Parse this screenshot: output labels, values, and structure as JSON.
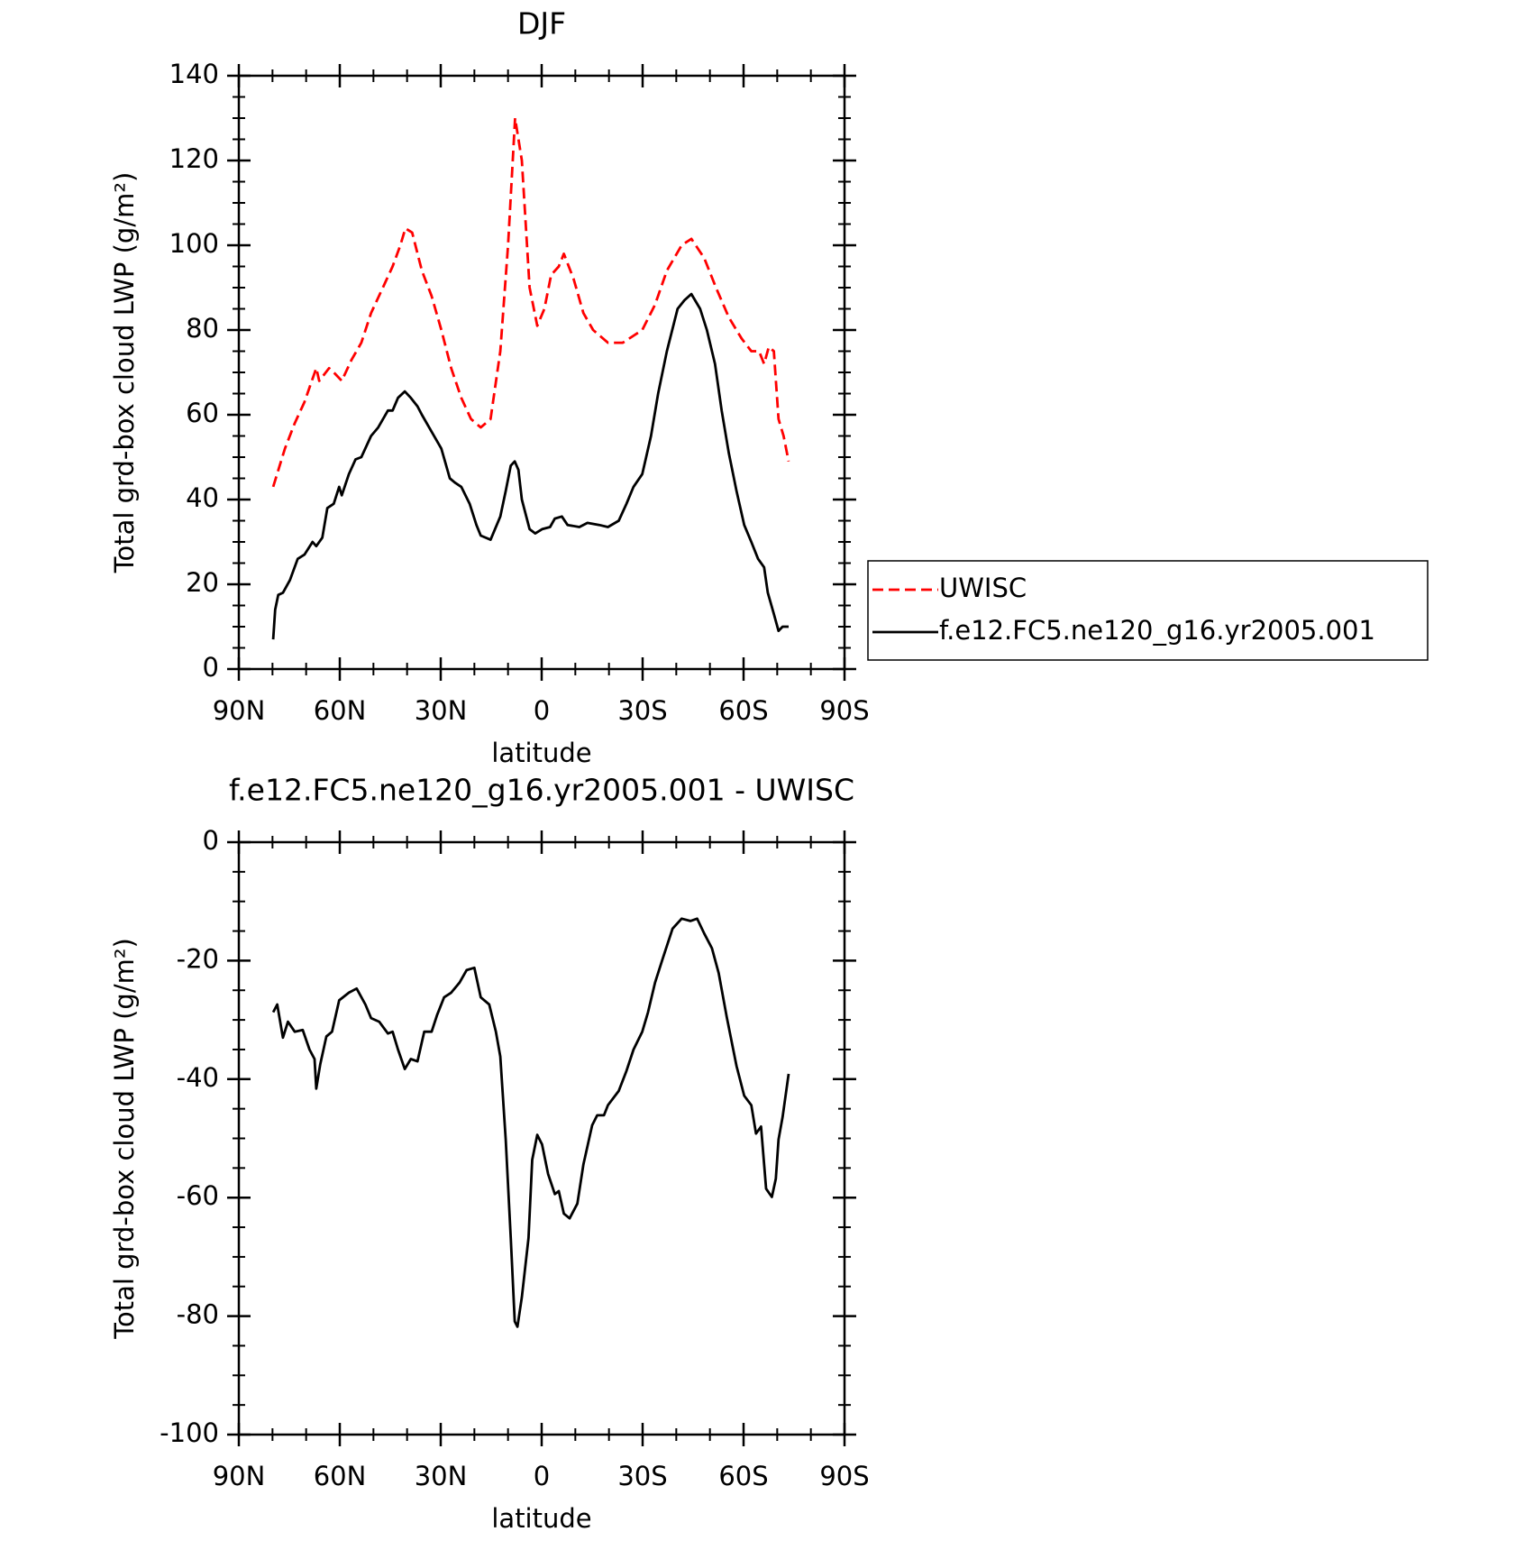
{
  "chart_data": [
    {
      "type": "line",
      "title": "DJF",
      "xlabel": "latitude",
      "ylabel": "Total grd-box cloud LWP (g/m²)",
      "xlim": [
        90,
        -90
      ],
      "xticks": [
        {
          "value": 90,
          "label": "90N"
        },
        {
          "value": 60,
          "label": "60N"
        },
        {
          "value": 30,
          "label": "30N"
        },
        0,
        {
          "value": -30,
          "label": "30S"
        },
        {
          "value": -60,
          "label": "60S"
        },
        {
          "value": -90,
          "label": "90S"
        }
      ],
      "ylim": [
        0,
        140
      ],
      "yticks": [
        0,
        20,
        40,
        60,
        80,
        100,
        120,
        140
      ],
      "legend": "right",
      "series": [
        {
          "name": "UWISC",
          "color": "#ff0000",
          "dash": true,
          "x": [
            79.8,
            76.3,
            73.4,
            70.5,
            67.0,
            66.1,
            63.2,
            61.8,
            59.4,
            56.5,
            53.6,
            50.7,
            47.2,
            44.3,
            42.0,
            40.5,
            38.5,
            35.6,
            32.7,
            29.8,
            26.9,
            23.9,
            21.0,
            18.1,
            15.2,
            12.3,
            10.0,
            7.9,
            5.9,
            3.6,
            1.3,
            -0.8,
            -2.8,
            -5.1,
            -6.6,
            -9.5,
            -12.4,
            -15.3,
            -19.7,
            -24.1,
            -29.9,
            -33.7,
            -37.2,
            -41.6,
            -44.5,
            -48.3,
            -51.8,
            -55.6,
            -59.4,
            -62.3,
            -64.6,
            -66.1,
            -67.5,
            -69.0,
            -70.4,
            -71.9,
            -73.4
          ],
          "values": [
            43,
            52,
            58,
            63,
            71,
            68,
            71,
            70,
            68,
            73,
            77,
            84,
            90,
            95,
            100,
            104,
            103,
            94,
            88,
            80,
            71,
            64,
            59,
            57,
            59,
            75,
            100,
            130,
            120,
            90,
            81,
            85,
            93,
            95,
            98,
            92,
            84,
            80,
            77,
            77,
            80,
            86,
            94,
            100,
            101.5,
            97,
            90,
            83,
            78,
            75,
            75,
            72,
            76,
            75,
            59,
            55,
            49
          ]
        },
        {
          "name": "f.e12.FC5.ne120_g16.yr2005.001",
          "color": "#000000",
          "dash": false,
          "x": [
            79.8,
            79.2,
            78.3,
            76.9,
            74.8,
            72.5,
            70.5,
            68.1,
            67.0,
            65.2,
            63.7,
            61.8,
            60.2,
            59.4,
            57.3,
            55.3,
            53.6,
            50.7,
            48.6,
            45.7,
            44.3,
            42.7,
            40.7,
            38.9,
            36.9,
            35.6,
            32.7,
            29.8,
            27.3,
            25.8,
            23.9,
            21.4,
            19.4,
            18.1,
            15.2,
            12.3,
            10.7,
            9.2,
            8.0,
            6.9,
            5.9,
            3.6,
            1.9,
            -0.1,
            -2.5,
            -3.9,
            -6.0,
            -7.7,
            -11.2,
            -13.6,
            -17.1,
            -19.7,
            -22.9,
            -25.2,
            -27.3,
            -29.9,
            -32.5,
            -34.6,
            -37.2,
            -40.4,
            -42.4,
            -44.5,
            -47.1,
            -49.1,
            -51.5,
            -53.5,
            -55.6,
            -57.9,
            -60.2,
            -62.3,
            -64.3,
            -66.1,
            -67.2,
            -69.0,
            -70.4,
            -71.6,
            -73.4
          ],
          "values": [
            7,
            14,
            17.5,
            18,
            21,
            26,
            27,
            30,
            29,
            31,
            38,
            39,
            43,
            41,
            46,
            49.5,
            50,
            55,
            57,
            61,
            61,
            64,
            65.5,
            64,
            62,
            60,
            56,
            52,
            45,
            44,
            43,
            39,
            34,
            31.5,
            30.5,
            36,
            42,
            48,
            49,
            47,
            40,
            33,
            32,
            33,
            33.5,
            35.5,
            36,
            34,
            33.5,
            34.5,
            34,
            33.5,
            35,
            39,
            43,
            46,
            55,
            65,
            75,
            85,
            87,
            88.5,
            85,
            80,
            72,
            61,
            51,
            42,
            34,
            30,
            26,
            24,
            18,
            13,
            9,
            10,
            10
          ]
        }
      ]
    },
    {
      "type": "line",
      "title": "f.e12.FC5.ne120_g16.yr2005.001 - UWISC",
      "xlabel": "latitude",
      "ylabel": "Total grd-box cloud LWP (g/m²)",
      "xlim": [
        90,
        -90
      ],
      "xticks": [
        {
          "value": 90,
          "label": "90N"
        },
        {
          "value": 60,
          "label": "60N"
        },
        {
          "value": 30,
          "label": "30N"
        },
        0,
        {
          "value": -30,
          "label": "30S"
        },
        {
          "value": -60,
          "label": "60S"
        },
        {
          "value": -90,
          "label": "90S"
        }
      ],
      "ylim": [
        -100,
        0
      ],
      "yticks": [
        -100,
        -80,
        -60,
        -40,
        -20,
        0
      ],
      "series": [
        {
          "color": "#000000",
          "dash": false,
          "x": [
            79.8,
            78.6,
            76.9,
            75.4,
            73.4,
            71.0,
            69.0,
            67.5,
            67.0,
            65.8,
            64.0,
            62.3,
            60.2,
            57.3,
            55.0,
            52.4,
            50.7,
            48.3,
            45.7,
            44.3,
            42.7,
            40.7,
            38.9,
            36.9,
            34.9,
            32.7,
            31.1,
            29.0,
            26.9,
            24.4,
            22.3,
            20.0,
            18.1,
            15.6,
            13.6,
            12.3,
            10.7,
            9.2,
            8.0,
            7.2,
            5.9,
            3.9,
            2.8,
            1.3,
            -0.1,
            -1.9,
            -3.9,
            -5.1,
            -6.6,
            -8.3,
            -10.6,
            -12.4,
            -15.0,
            -16.5,
            -18.5,
            -19.7,
            -22.9,
            -25.2,
            -27.3,
            -29.9,
            -31.6,
            -33.7,
            -36.0,
            -38.9,
            -41.6,
            -44.2,
            -46.2,
            -48.3,
            -50.6,
            -52.6,
            -55.0,
            -57.9,
            -60.2,
            -62.3,
            -63.7,
            -65.2,
            -66.7,
            -68.4,
            -69.6,
            -70.4,
            -71.6,
            -73.4
          ],
          "values": [
            -28.7,
            -27.4,
            -33,
            -30.3,
            -32,
            -31.7,
            -35,
            -36.6,
            -41.6,
            -37.5,
            -32.8,
            -32,
            -26.7,
            -25.4,
            -24.7,
            -27.4,
            -29.7,
            -30.3,
            -32.3,
            -32,
            -35,
            -38.3,
            -36.6,
            -37,
            -32,
            -32,
            -29.2,
            -26.2,
            -25.4,
            -23.7,
            -21.6,
            -21.2,
            -26.2,
            -27.4,
            -32,
            -36.2,
            -50.2,
            -66.8,
            -80.9,
            -81.8,
            -76.8,
            -66.8,
            -53.6,
            -49.4,
            -51,
            -56,
            -59.4,
            -58.9,
            -62.7,
            -63.5,
            -61,
            -54.4,
            -47.8,
            -46.1,
            -46.1,
            -44.4,
            -42,
            -38.6,
            -35,
            -32,
            -28.7,
            -23.7,
            -19.6,
            -14.6,
            -12.9,
            -13.3,
            -12.9,
            -15.4,
            -17.9,
            -22.1,
            -29.5,
            -37.8,
            -42.8,
            -44.4,
            -49.2,
            -48,
            -58.5,
            -59.9,
            -56.8,
            -50.2,
            -46.4,
            -39.1
          ]
        }
      ]
    }
  ]
}
